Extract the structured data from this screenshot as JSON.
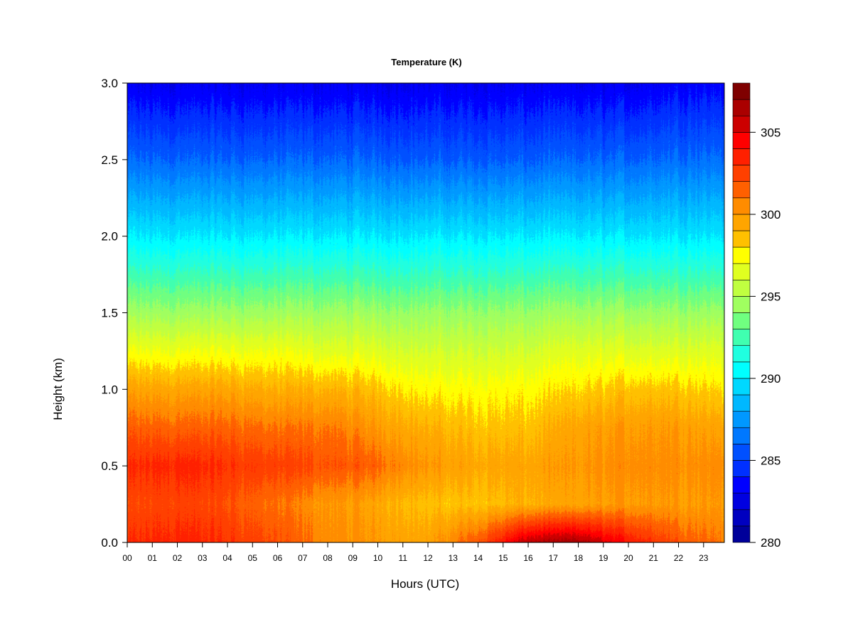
{
  "chart_data": {
    "type": "heatmap",
    "title": "Temperature (K)",
    "xlabel": "Hours (UTC)",
    "ylabel": "Height (km)",
    "xlim": [
      0,
      23.8
    ],
    "ylim": [
      0,
      3.0
    ],
    "x_ticks": [
      "00",
      "01",
      "02",
      "03",
      "04",
      "05",
      "06",
      "07",
      "08",
      "09",
      "10",
      "11",
      "12",
      "13",
      "14",
      "15",
      "16",
      "17",
      "18",
      "19",
      "20",
      "21",
      "22",
      "23"
    ],
    "y_ticks": [
      "0.0",
      "0.5",
      "1.0",
      "1.5",
      "2.0",
      "2.5",
      "3.0"
    ],
    "colorbar": {
      "range": [
        280,
        308
      ],
      "step": 1,
      "ticks": [
        "280",
        "285",
        "290",
        "295",
        "300",
        "305"
      ],
      "colors": [
        "#00009a",
        "#0000c0",
        "#0000e0",
        "#0000ff",
        "#0030ff",
        "#0050ff",
        "#0078ff",
        "#0098ff",
        "#00b8ff",
        "#00d8ff",
        "#00ffff",
        "#20ffe0",
        "#40ffb0",
        "#70ff80",
        "#a0ff60",
        "#c0ff40",
        "#e0ff20",
        "#ffff00",
        "#ffc000",
        "#ffa500",
        "#ff8c00",
        "#ff6000",
        "#ff4000",
        "#ff2000",
        "#ff0000",
        "#cc0000",
        "#aa0000",
        "#7f0000"
      ]
    },
    "grid_hours": [
      0,
      2,
      4,
      6,
      8,
      10,
      12,
      14,
      16,
      18,
      20,
      22,
      23.8
    ],
    "grid_heights_km": [
      0,
      0.25,
      0.5,
      0.75,
      1.0,
      1.25,
      1.5,
      2.0,
      2.5,
      3.0
    ],
    "values_K": [
      [
        303,
        303.5,
        303,
        302,
        300.5,
        300,
        299.5,
        302,
        306,
        306.5,
        304,
        302,
        301
      ],
      [
        302,
        302.5,
        302,
        301,
        300,
        299.5,
        298.5,
        298.5,
        299,
        299.5,
        300,
        300,
        300
      ],
      [
        303,
        303.5,
        303,
        302.5,
        302,
        301.5,
        300,
        299.5,
        299.5,
        300,
        300.5,
        300.5,
        300.5
      ],
      [
        301.5,
        301.5,
        301.5,
        301,
        301,
        300,
        299,
        298.5,
        298.5,
        299.5,
        300,
        300,
        299.5
      ],
      [
        299.5,
        299.5,
        299.5,
        299,
        299,
        298.5,
        297.5,
        297.5,
        297.5,
        298,
        298.5,
        298.5,
        298
      ],
      [
        297,
        297,
        297,
        297,
        296.5,
        296.5,
        296,
        296,
        296,
        296.5,
        296.5,
        296.5,
        296.5
      ],
      [
        294.5,
        294.5,
        294.5,
        294.5,
        294.5,
        294.5,
        294.3,
        294.3,
        294.3,
        294.5,
        294.5,
        294.5,
        294.5
      ],
      [
        290,
        290,
        290,
        290,
        290,
        290,
        290,
        290,
        290,
        290,
        290,
        290,
        290
      ],
      [
        286,
        286,
        286,
        286,
        286,
        286,
        285.8,
        285.8,
        285.8,
        286,
        286,
        286.3,
        286.3
      ],
      [
        283,
        283,
        283,
        283,
        283,
        283,
        283,
        283,
        283,
        283,
        283,
        283.5,
        283.5
      ]
    ]
  }
}
